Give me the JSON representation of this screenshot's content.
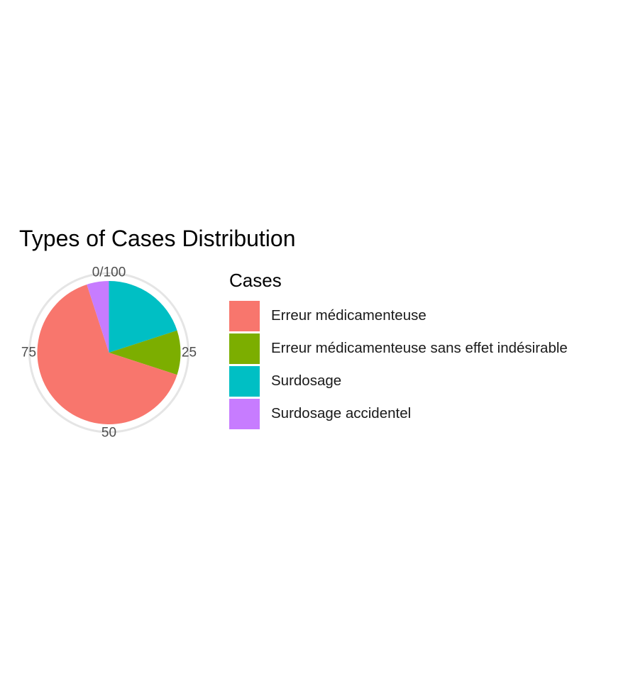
{
  "chart_data": {
    "type": "pie",
    "title": "Types of Cases Distribution",
    "legend_title": "Cases",
    "legend_position": "right",
    "axis_ticks": [
      "0/100",
      "25",
      "50",
      "75"
    ],
    "grid": true,
    "categories": [
      "Erreur médicamenteuse",
      "Erreur médicamenteuse sans effet indésirable",
      "Surdosage",
      "Surdosage accidentel"
    ],
    "values": [
      65,
      10,
      20,
      5
    ],
    "colors": [
      "#F8766D",
      "#7CAE00",
      "#00BFC4",
      "#C77CFF"
    ],
    "draw_order": [
      2,
      1,
      0,
      3
    ]
  }
}
